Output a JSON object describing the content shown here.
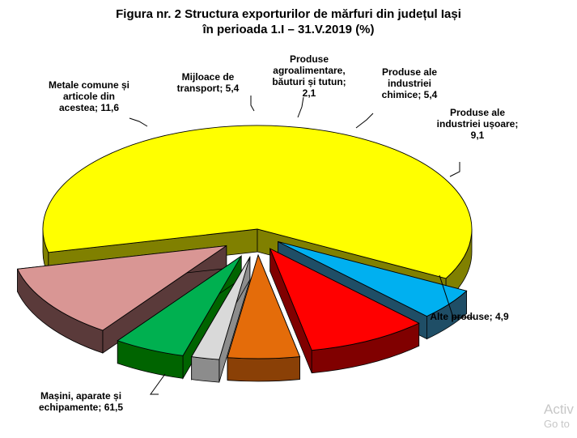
{
  "chart_data": {
    "type": "pie",
    "title_lines": [
      "Figura nr. 2 Structura exporturilor de mărfuri din județul Iași",
      "în perioada 1.I – 31.V.2019 (%)"
    ],
    "slices": [
      {
        "label_lines": [
          "Mașini, aparate și",
          "echipamente; 61,5"
        ],
        "value": 61.5,
        "color": "#ffff00",
        "side_color": "#808000"
      },
      {
        "label_lines": [
          "Alte produse; 4,9"
        ],
        "value": 4.9,
        "color": "#00b0f0",
        "side_color": "#1f4e66"
      },
      {
        "label_lines": [
          "Produse ale",
          "industriei ușoare;",
          "9,1"
        ],
        "value": 9.1,
        "color": "#ff0000",
        "side_color": "#800000"
      },
      {
        "label_lines": [
          "Produse ale",
          "industriei",
          "chimice; 5,4"
        ],
        "value": 5.4,
        "color": "#e46c0a",
        "side_color": "#8a4006"
      },
      {
        "label_lines": [
          "Produse",
          "agroalimentare,",
          "băuturi și tutun;",
          "2,1"
        ],
        "value": 2.1,
        "color": "#d9d9d9",
        "side_color": "#8c8c8c"
      },
      {
        "label_lines": [
          "Mijloace de",
          "transport; 5,4"
        ],
        "value": 5.4,
        "color": "#00b050",
        "side_color": "#006400"
      },
      {
        "label_lines": [
          "Metale comune și",
          "articole din",
          "acestea; 11,6"
        ],
        "value": 11.6,
        "color": "#d99694",
        "side_color": "#5a3a3a"
      }
    ]
  },
  "watermark": {
    "line1": "Activ",
    "line2": "Go to"
  }
}
